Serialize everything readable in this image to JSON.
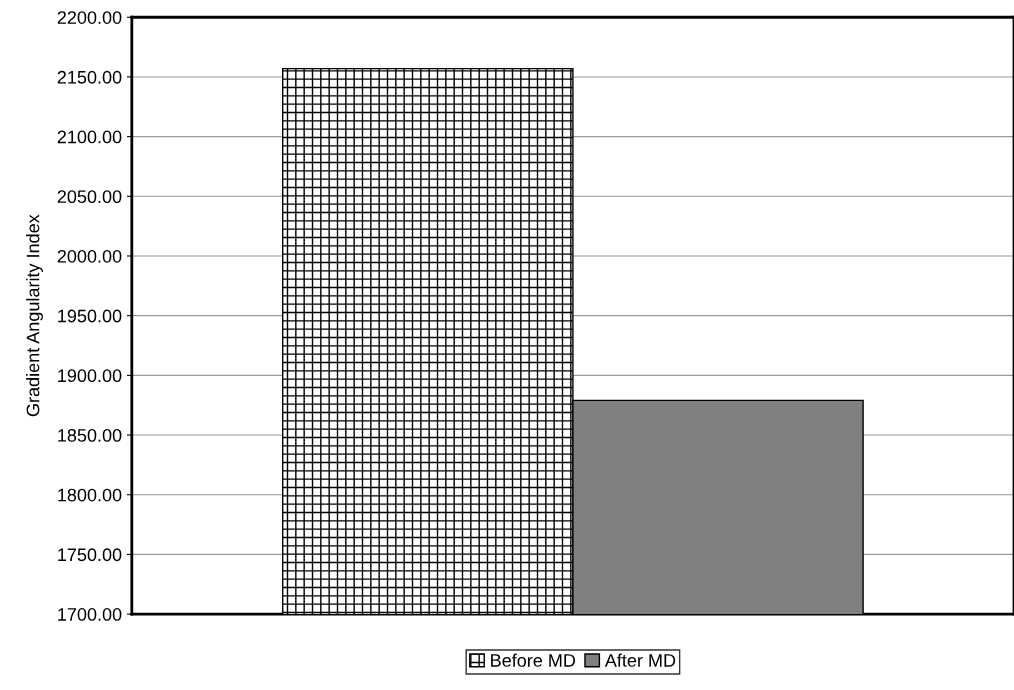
{
  "chart_data": {
    "type": "bar",
    "ylabel": "Gradient Angularity Index",
    "categories": [
      null
    ],
    "series": [
      {
        "name": "Before MD",
        "color": "#000000",
        "values": [
          2157
        ]
      },
      {
        "name": "After MD",
        "color": "#808080",
        "values": [
          1879
        ]
      }
    ],
    "ylim": [
      1700,
      2200
    ],
    "yticks": [
      {
        "value": 1700,
        "label": "1700.00"
      },
      {
        "value": 1750,
        "label": "1750.00"
      },
      {
        "value": 1800,
        "label": "1800.00"
      },
      {
        "value": 1850,
        "label": "1850.00"
      },
      {
        "value": 1900,
        "label": "1900.00"
      },
      {
        "value": 1950,
        "label": "1950.00"
      },
      {
        "value": 2000,
        "label": "2000.00"
      },
      {
        "value": 2050,
        "label": "2050.00"
      },
      {
        "value": 2100,
        "label": "2100.00"
      },
      {
        "value": 2150,
        "label": "2150.00"
      },
      {
        "value": 2200,
        "label": "2200.00"
      }
    ],
    "grid": "y",
    "legend": "bottom"
  }
}
